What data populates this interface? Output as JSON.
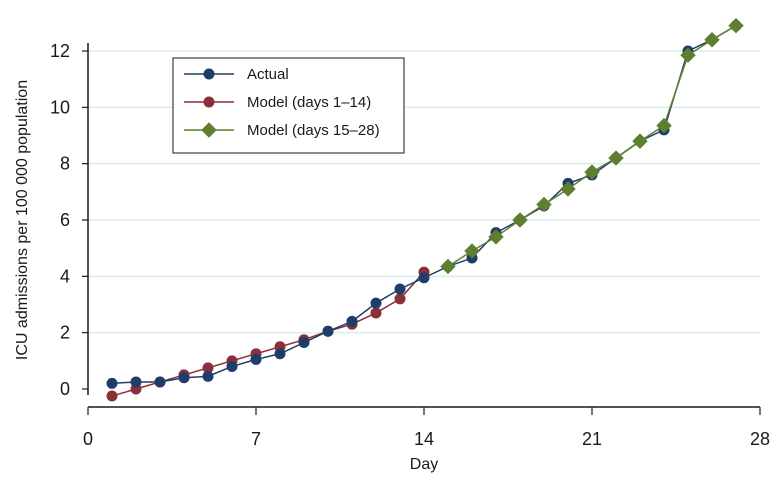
{
  "chart_data": {
    "type": "line",
    "xlabel": "Day",
    "ylabel": "ICU admissions per 100 000 population",
    "xlim": [
      0,
      28
    ],
    "ylim": [
      0,
      12
    ],
    "xticks": [
      0,
      7,
      14,
      21,
      28
    ],
    "yticks": [
      0,
      2,
      4,
      6,
      8,
      10,
      12
    ],
    "grid": "horizontal",
    "legend_position": "top-left",
    "series": [
      {
        "name": "Actual",
        "color": "#1f3d6b",
        "marker": "circle",
        "x": [
          1,
          2,
          3,
          4,
          5,
          6,
          7,
          8,
          9,
          10,
          11,
          12,
          13,
          14,
          15,
          16,
          17,
          18,
          19,
          20,
          21,
          22,
          23,
          24,
          25,
          26,
          27
        ],
        "y": [
          0.2,
          0.25,
          0.25,
          0.4,
          0.45,
          0.8,
          1.05,
          1.25,
          1.65,
          2.05,
          2.4,
          3.05,
          3.55,
          3.95,
          4.35,
          4.65,
          5.55,
          6.0,
          6.5,
          7.3,
          7.6,
          8.2,
          8.8,
          9.2,
          12.0,
          12.4,
          12.9
        ]
      },
      {
        "name": "Model (days 1–14)",
        "color": "#8b2f3a",
        "marker": "circle",
        "x": [
          1,
          2,
          3,
          4,
          5,
          6,
          7,
          8,
          9,
          10,
          11,
          12,
          13,
          14
        ],
        "y": [
          -0.25,
          0.0,
          0.25,
          0.5,
          0.75,
          1.0,
          1.25,
          1.5,
          1.75,
          2.05,
          2.3,
          2.7,
          3.2,
          4.15
        ]
      },
      {
        "name": "Model (days 15–28)",
        "color": "#5e7f2f",
        "marker": "diamond",
        "x": [
          15,
          16,
          17,
          18,
          19,
          20,
          21,
          22,
          23,
          24,
          25,
          26,
          27
        ],
        "y": [
          4.35,
          4.9,
          5.4,
          6.0,
          6.55,
          7.1,
          7.7,
          8.2,
          8.8,
          9.35,
          11.85,
          12.4,
          12.9
        ]
      }
    ]
  }
}
